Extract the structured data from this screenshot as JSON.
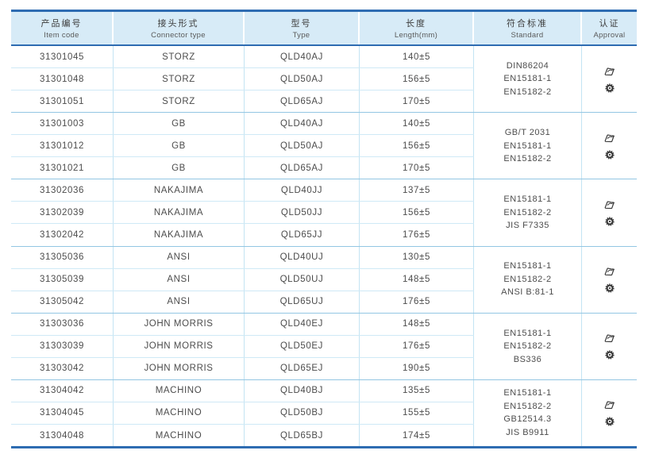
{
  "colors": {
    "table_border": "#2e6cb2",
    "header_bg": "#d7ebf7",
    "group_line": "#93c6e3",
    "row_line": "#cfe9f6",
    "column_line": "#c3e4f3",
    "text": "#4c4c4c",
    "icon": "#3a3a3a"
  },
  "table": {
    "columns": [
      {
        "zh": "产品编号",
        "en": "Item code"
      },
      {
        "zh": "接头形式",
        "en": "Connector type"
      },
      {
        "zh": "型号",
        "en": "Type"
      },
      {
        "zh": "长度",
        "en": "Length(mm)"
      },
      {
        "zh": "符合标准",
        "en": "Standard"
      },
      {
        "zh": "认证",
        "en": "Approval"
      }
    ],
    "groups": [
      {
        "rows": [
          [
            "31301045",
            "STORZ",
            "QLD40AJ",
            "140±5"
          ],
          [
            "31301048",
            "STORZ",
            "QLD50AJ",
            "156±5"
          ],
          [
            "31301051",
            "STORZ",
            "QLD65AJ",
            "170±5"
          ]
        ],
        "standards": [
          "DIN86204",
          "EN15181-1",
          "EN15182-2"
        ],
        "approval_icons": [
          "certification-stamp-icon",
          "gear-seal-icon"
        ]
      },
      {
        "rows": [
          [
            "31301003",
            "GB",
            "QLD40AJ",
            "140±5"
          ],
          [
            "31301012",
            "GB",
            "QLD50AJ",
            "156±5"
          ],
          [
            "31301021",
            "GB",
            "QLD65AJ",
            "170±5"
          ]
        ],
        "standards": [
          "GB/T 2031",
          "EN15181-1",
          "EN15182-2"
        ],
        "approval_icons": [
          "certification-stamp-icon",
          "gear-seal-icon"
        ]
      },
      {
        "rows": [
          [
            "31302036",
            "NAKAJIMA",
            "QLD40JJ",
            "137±5"
          ],
          [
            "31302039",
            "NAKAJIMA",
            "QLD50JJ",
            "156±5"
          ],
          [
            "31302042",
            "NAKAJIMA",
            "QLD65JJ",
            "176±5"
          ]
        ],
        "standards": [
          "EN15181-1",
          "EN15182-2",
          "JIS F7335"
        ],
        "approval_icons": [
          "certification-stamp-icon",
          "gear-seal-icon"
        ]
      },
      {
        "rows": [
          [
            "31305036",
            "ANSI",
            "QLD40UJ",
            "130±5"
          ],
          [
            "31305039",
            "ANSI",
            "QLD50UJ",
            "148±5"
          ],
          [
            "31305042",
            "ANSI",
            "QLD65UJ",
            "176±5"
          ]
        ],
        "standards": [
          "EN15181-1",
          "EN15182-2",
          "ANSI B:81-1"
        ],
        "approval_icons": [
          "certification-stamp-icon",
          "gear-seal-icon"
        ]
      },
      {
        "rows": [
          [
            "31303036",
            "JOHN MORRIS",
            "QLD40EJ",
            "148±5"
          ],
          [
            "31303039",
            "JOHN MORRIS",
            "QLD50EJ",
            "176±5"
          ],
          [
            "31303042",
            "JOHN MORRIS",
            "QLD65EJ",
            "190±5"
          ]
        ],
        "standards": [
          "EN15181-1",
          "EN15182-2",
          "BS336"
        ],
        "approval_icons": [
          "certification-stamp-icon",
          "gear-seal-icon"
        ]
      },
      {
        "rows": [
          [
            "31304042",
            "MACHINO",
            "QLD40BJ",
            "135±5"
          ],
          [
            "31304045",
            "MACHINO",
            "QLD50BJ",
            "155±5"
          ],
          [
            "31304048",
            "MACHINO",
            "QLD65BJ",
            "174±5"
          ]
        ],
        "standards": [
          "EN15181-1",
          "EN15182-2",
          "GB12514.3",
          "JIS B9911"
        ],
        "approval_icons": [
          "certification-stamp-icon",
          "gear-seal-icon"
        ]
      }
    ]
  }
}
